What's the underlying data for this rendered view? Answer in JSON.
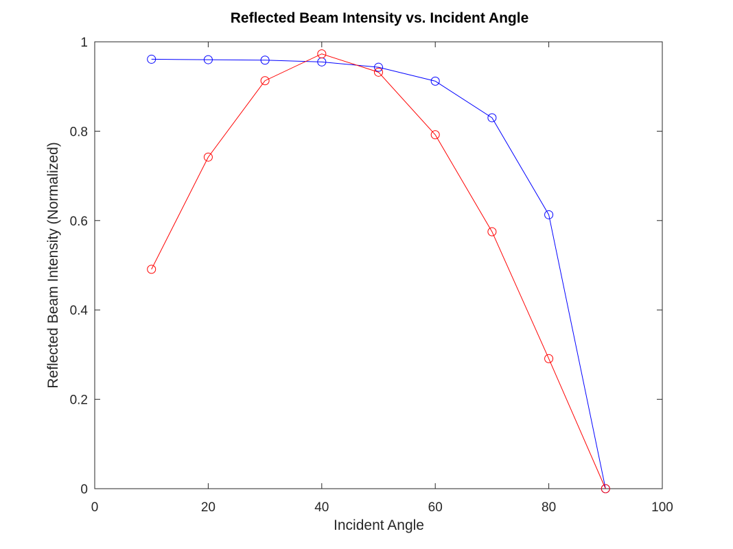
{
  "chart_data": {
    "type": "line",
    "title": "Reflected Beam Intensity vs. Incident Angle",
    "xlabel": "Incident Angle",
    "ylabel": "Reflected Beam Intensity (Normalized)",
    "xlim": [
      0,
      100
    ],
    "ylim": [
      0,
      1
    ],
    "x_ticks": [
      0,
      20,
      40,
      60,
      80,
      100
    ],
    "x_tick_labels": [
      "0",
      "20",
      "40",
      "60",
      "80",
      "100"
    ],
    "y_ticks": [
      0,
      0.2,
      0.4,
      0.6,
      0.8,
      1
    ],
    "y_tick_labels": [
      "0",
      "0.2",
      "0.4",
      "0.6",
      "0.8",
      "1"
    ],
    "grid": false,
    "legend": "none",
    "marker": "circle",
    "x": [
      10,
      20,
      30,
      40,
      50,
      60,
      70,
      80,
      90
    ],
    "series": [
      {
        "color": "#0000ff",
        "values": [
          0.961,
          0.96,
          0.959,
          0.955,
          0.943,
          0.912,
          0.83,
          0.613,
          0.0
        ]
      },
      {
        "color": "#ff0000",
        "values": [
          0.491,
          0.742,
          0.913,
          0.973,
          0.932,
          0.792,
          0.575,
          0.291,
          0.0
        ]
      }
    ]
  }
}
